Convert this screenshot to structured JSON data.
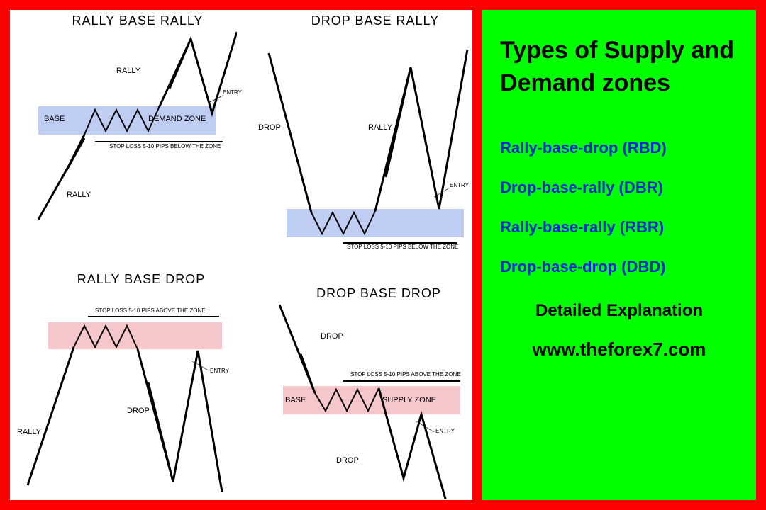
{
  "sidebar": {
    "title": "Types of Supply and\nDemand zones",
    "items": [
      "Rally-base-drop (RBD)",
      "Drop-base-rally (DBR)",
      "Rally-base-rally (RBR)",
      "Drop-base-drop (DBD)"
    ],
    "subtitle": "Detailed Explanation",
    "url": "www.theforex7.com"
  },
  "colors": {
    "frame": "#ff0000",
    "sidebar_bg": "#00ff00",
    "sidebar_title": "#000000",
    "sidebar_items": "#0028d4",
    "demand_zone": "#c0cdf2",
    "supply_zone": "#f5c6ca",
    "line": "#000000"
  },
  "patterns": {
    "rbr": {
      "title": "RALLY BASE RALLY",
      "labels": {
        "rally1": "RALLY",
        "rally2": "RALLY",
        "base": "BASE",
        "zone": "DEMAND ZONE",
        "entry": "ENTRY",
        "stoploss": "STOP LOSS 5-10 PIPS BELOW THE ZONE"
      },
      "zone_color": "#c0cdf2"
    },
    "dbr": {
      "title": "DROP BASE RALLY",
      "labels": {
        "drop": "DROP",
        "rally": "RALLY",
        "entry": "ENTRY",
        "stoploss": "STOP LOSS 5-10 PIPS BELOW THE ZONE"
      },
      "zone_color": "#c0cdf2"
    },
    "rbd": {
      "title": "RALLY BASE DROP",
      "labels": {
        "rally": "RALLY",
        "drop": "DROP",
        "entry": "ENTRY",
        "stoploss": "STOP LOSS 5-10 PIPS ABOVE THE ZONE"
      },
      "zone_color": "#f5c6ca"
    },
    "dbd": {
      "title": "DROP BASE DROP",
      "labels": {
        "drop1": "DROP",
        "drop2": "DROP",
        "base": "BASE",
        "zone": "SUPPLY ZONE",
        "entry": "ENTRY",
        "stoploss": "STOP LOSS 5-10 PIPS ABOVE THE ZONE"
      },
      "zone_color": "#f5c6ca"
    }
  }
}
